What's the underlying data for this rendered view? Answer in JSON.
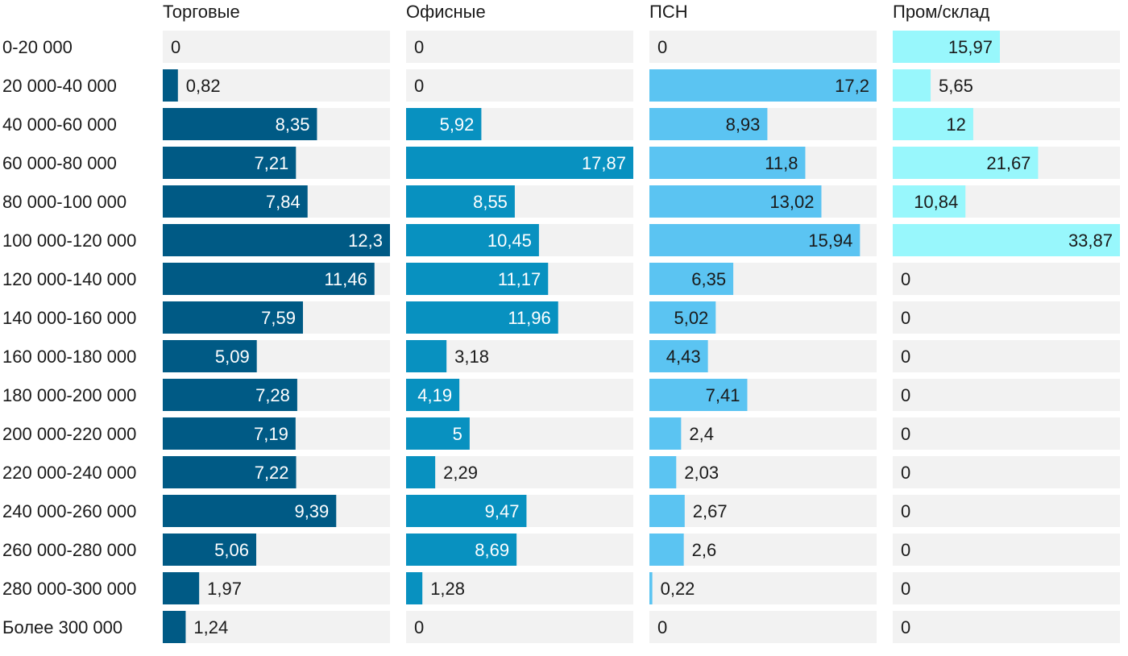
{
  "chart_data": {
    "type": "bar",
    "orientation": "horizontal",
    "layout": "small-multiples",
    "categories": [
      "0-20 000",
      "20 000-40 000",
      "40 000-60 000",
      "60 000-80 000",
      "80 000-100 000",
      "100 000-120 000",
      "120 000-140 000",
      "140 000-160 000",
      "160 000-180 000",
      "180 000-200 000",
      "200 000-220 000",
      "220 000-240 000",
      "240 000-260 000",
      "260 000-280 000",
      "280 000-300 000",
      "Более 300 000"
    ],
    "series": [
      {
        "name": "Торговые",
        "color": "#005a85",
        "xlim": [
          0,
          12.3
        ],
        "values": [
          0,
          0.82,
          8.35,
          7.21,
          7.84,
          12.3,
          11.46,
          7.59,
          5.09,
          7.28,
          7.19,
          7.22,
          9.39,
          5.06,
          1.97,
          1.24
        ],
        "labels": [
          "0",
          "0,82",
          "8,35",
          "7,21",
          "7,84",
          "12,3",
          "11,46",
          "7,59",
          "5,09",
          "7,28",
          "7,19",
          "7,22",
          "9,39",
          "5,06",
          "1,97",
          "1,24"
        ]
      },
      {
        "name": "Офисные",
        "color": "#0891c0",
        "xlim": [
          0,
          17.87
        ],
        "values": [
          0,
          0,
          5.92,
          17.87,
          8.55,
          10.45,
          11.17,
          11.96,
          3.18,
          4.19,
          5,
          2.29,
          9.47,
          8.69,
          1.28,
          0
        ],
        "labels": [
          "0",
          "0",
          "5,92",
          "17,87",
          "8,55",
          "10,45",
          "11,17",
          "11,96",
          "3,18",
          "4,19",
          "5",
          "2,29",
          "9,47",
          "8,69",
          "1,28",
          "0"
        ]
      },
      {
        "name": "ПСН",
        "color": "#5bc4f2",
        "xlim": [
          0,
          17.2
        ],
        "values": [
          0,
          17.2,
          8.93,
          11.8,
          13.02,
          15.94,
          6.35,
          5.02,
          4.43,
          7.41,
          2.4,
          2.03,
          2.67,
          2.6,
          0.22,
          0
        ],
        "labels": [
          "0",
          "17,2",
          "8,93",
          "11,8",
          "13,02",
          "15,94",
          "6,35",
          "5,02",
          "4,43",
          "7,41",
          "2,4",
          "2,03",
          "2,67",
          "2,6",
          "0,22",
          "0"
        ]
      },
      {
        "name": "Пром/склад",
        "color": "#98f7fc",
        "xlim": [
          0,
          33.87
        ],
        "values": [
          15.97,
          5.65,
          12,
          21.67,
          10.84,
          33.87,
          0,
          0,
          0,
          0,
          0,
          0,
          0,
          0,
          0,
          0
        ],
        "labels": [
          "15,97",
          "5,65",
          "12",
          "21,67",
          "10,84",
          "33,87",
          "0",
          "0",
          "0",
          "0",
          "0",
          "0",
          "0",
          "0",
          "0",
          "0"
        ]
      }
    ],
    "track_color": "#f2f2f2",
    "grid": false,
    "legend": "none"
  }
}
